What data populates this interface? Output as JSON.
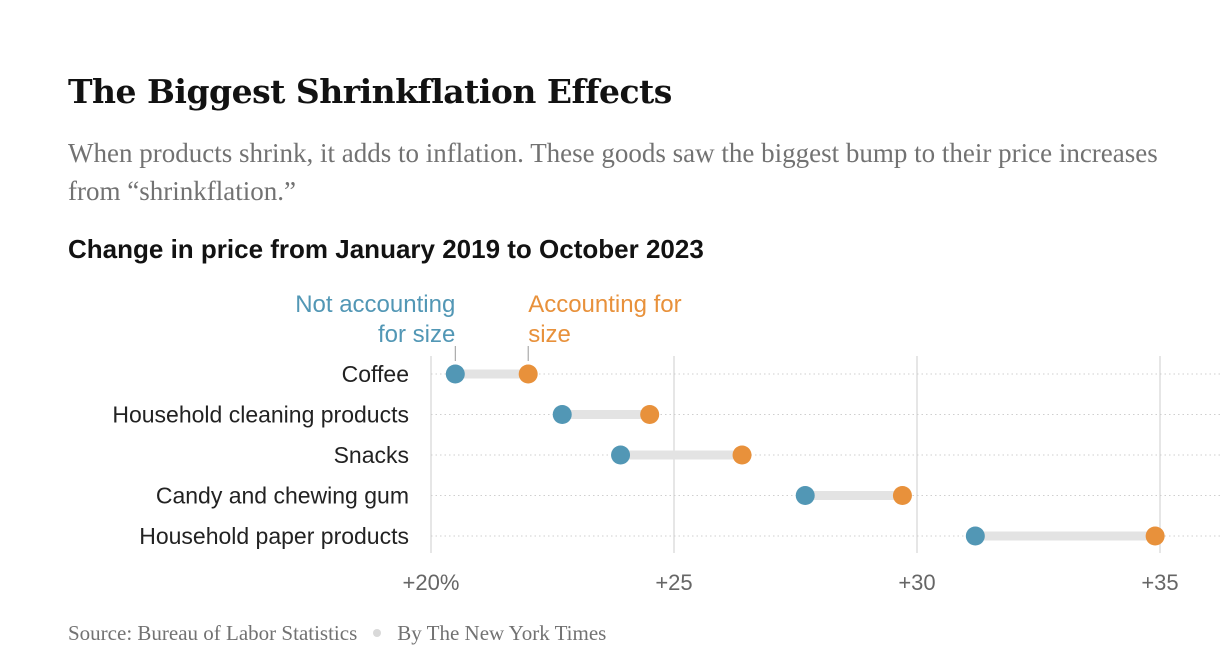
{
  "title": "The Biggest Shrinkflation Effects",
  "subtitle": "When products shrink, it adds to inflation. These goods saw the biggest bump to their price increases from “shrinkflation.”",
  "chart_heading": "Change in price from January 2019 to October 2023",
  "footer": {
    "source": "Source: Bureau of Labor Statistics",
    "byline": "By The New York Times"
  },
  "colors": {
    "not_accounting": "#5297b5",
    "accounting": "#e8913b",
    "connector": "#e3e3e3",
    "grid": "#dddddd",
    "tick_text": "#666666"
  },
  "chart_data": {
    "type": "dumbbell",
    "categories": [
      "Coffee",
      "Household cleaning products",
      "Snacks",
      "Candy and chewing gum",
      "Household paper products"
    ],
    "series": [
      {
        "name": "Not accounting for size",
        "label_lines": [
          "Not accounting",
          "for size"
        ],
        "values": [
          20.5,
          22.7,
          23.9,
          27.7,
          31.2
        ]
      },
      {
        "name": "Accounting for size",
        "label_lines": [
          "Accounting for",
          "size"
        ],
        "values": [
          22.0,
          24.5,
          26.4,
          29.7,
          34.9
        ]
      }
    ],
    "x_ticks": [
      20,
      25,
      30,
      35
    ],
    "x_tick_labels": [
      "+20%",
      "+25",
      "+30",
      "+35"
    ],
    "xlim": [
      20,
      35
    ],
    "grid": true
  }
}
